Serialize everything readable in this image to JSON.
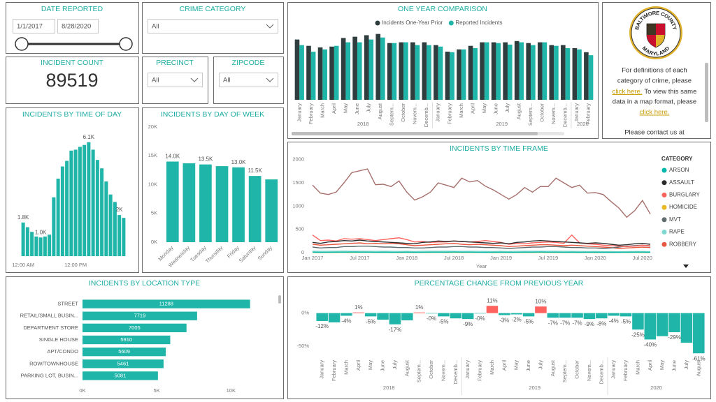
{
  "slicers": {
    "date": {
      "title": "DATE REPORTED",
      "start": "1/1/2017",
      "end": "8/28/2020"
    },
    "crime_category": {
      "title": "CRIME CATEGORY",
      "selected": "All"
    },
    "precinct": {
      "title": "PRECINCT",
      "selected": "All"
    },
    "zipcode": {
      "title": "ZIPCODE",
      "selected": "All"
    }
  },
  "kpi": {
    "title": "INCIDENT COUNT",
    "value": 89519
  },
  "logo": {
    "top": "BALTIMORE COUNTY",
    "bottom": "MARYLAND"
  },
  "info": {
    "line1": "For definitions of each",
    "line2": "category of crime, please",
    "link1": "click here.",
    "line3": "To view this same",
    "line4": "data in a map format, please",
    "link2": "click here.",
    "line5": "Please contact us at"
  },
  "chart_data": [
    {
      "type": "grouped_bar",
      "title": "ONE YEAR COMPARISON",
      "groups": [
        {
          "label": "2018",
          "categories": [
            "January",
            "February",
            "March",
            "April",
            "May",
            "June",
            "July",
            "August",
            "Septem...",
            "October",
            "Novem...",
            "Decemb..."
          ]
        },
        {
          "label": "2019",
          "categories": [
            "January",
            "February",
            "March",
            "April",
            "May",
            "June",
            "July",
            "August",
            "Septem...",
            "October",
            "Novem...",
            "Decemb..."
          ]
        },
        {
          "label": "2020",
          "categories": [
            "January",
            "February"
          ]
        }
      ],
      "series": [
        {
          "name": "Incidents One-Year Prior",
          "color": "#2f3d3e",
          "values": [
            2380,
            2130,
            2070,
            2100,
            2440,
            2490,
            2550,
            2600,
            2240,
            2270,
            2270,
            2270,
            2160,
            1900,
            1990,
            2130,
            2270,
            2270,
            2270,
            2320,
            2240,
            2270,
            2160,
            2160,
            2040,
            1880
          ]
        },
        {
          "name": "Reported Incidents",
          "color": "#1fb5a8",
          "values": [
            2160,
            1900,
            1990,
            2130,
            2270,
            2270,
            2380,
            2460,
            2240,
            2270,
            2160,
            2160,
            2100,
            1880,
            1990,
            2040,
            2270,
            2240,
            2180,
            2270,
            2160,
            2270,
            2130,
            2040,
            1990,
            1760
          ]
        }
      ],
      "ylim": [
        0,
        2700
      ]
    },
    {
      "type": "bar",
      "title": "INCIDENTS BY TIME OF DAY",
      "categories": [
        "12:00 AM",
        null,
        null,
        null,
        null,
        null,
        null,
        null,
        null,
        null,
        null,
        null,
        "12:00 PM",
        null,
        null,
        null,
        null,
        null,
        null,
        null,
        null,
        null,
        null,
        null
      ],
      "values": [
        1800,
        1550,
        1300,
        1050,
        1000,
        1050,
        1150,
        3150,
        4150,
        4800,
        5100,
        5650,
        5700,
        5850,
        5950,
        6100,
        5700,
        5150,
        4700,
        4000,
        3300,
        2900,
        2200,
        2050
      ],
      "value_labels": [
        "1.8K",
        null,
        null,
        null,
        "1.0K",
        null,
        null,
        null,
        null,
        null,
        null,
        null,
        null,
        null,
        null,
        "6.1K",
        null,
        null,
        null,
        null,
        null,
        null,
        "2K",
        null
      ],
      "color": "#1fb5a8",
      "ylim": [
        0,
        6800
      ]
    },
    {
      "type": "bar",
      "title": "INCIDENTS BY DAY OF WEEK",
      "categories": [
        "Monday",
        "Wednesday",
        "Tuesday",
        "Thursday",
        "Friday",
        "Saturday",
        "Sunday"
      ],
      "values": [
        14000,
        13700,
        13500,
        13200,
        13000,
        11500,
        10900
      ],
      "value_labels": [
        "14.0K",
        null,
        "13.5K",
        null,
        "13.0K",
        "11.5K",
        null
      ],
      "color": "#1fb5a8",
      "ylim": [
        0,
        20000
      ],
      "yticks": [
        {
          "value": 0,
          "label": "0K"
        },
        {
          "value": 5000,
          "label": "5K"
        },
        {
          "value": 10000,
          "label": "10K"
        },
        {
          "value": 15000,
          "label": "15K"
        },
        {
          "value": 20000,
          "label": "20K"
        }
      ]
    },
    {
      "type": "line",
      "title": "INCIDENTS BY TIME FRAME",
      "x_label": "Year",
      "legend_title": "CATEGORY",
      "x": [
        "2017-01",
        "2017-02",
        "2017-03",
        "2017-04",
        "2017-05",
        "2017-06",
        "2017-07",
        "2017-08",
        "2017-09",
        "2017-10",
        "2017-11",
        "2017-12",
        "2018-01",
        "2018-02",
        "2018-03",
        "2018-04",
        "2018-05",
        "2018-06",
        "2018-07",
        "2018-08",
        "2018-09",
        "2018-10",
        "2018-11",
        "2018-12",
        "2019-01",
        "2019-02",
        "2019-03",
        "2019-04",
        "2019-05",
        "2019-06",
        "2019-07",
        "2019-08",
        "2019-09",
        "2019-10",
        "2019-11",
        "2019-12",
        "2020-01",
        "2020-02",
        "2020-03",
        "2020-04",
        "2020-05",
        "2020-06",
        "2020-07",
        "2020-08"
      ],
      "xticks": [
        {
          "value": "2017-01",
          "label": "Jan 2017"
        },
        {
          "value": "2017-07",
          "label": "Jul 2017"
        },
        {
          "value": "2018-01",
          "label": "Jan 2018"
        },
        {
          "value": "2018-07",
          "label": "Jul 2018"
        },
        {
          "value": "2019-01",
          "label": "Jan 2019"
        },
        {
          "value": "2019-07",
          "label": "Jul 2019"
        },
        {
          "value": "2020-01",
          "label": "Jan 2020"
        },
        {
          "value": "2020-07",
          "label": "Jul 2020"
        }
      ],
      "ylim": [
        0,
        2100
      ],
      "yticks": [
        0,
        500,
        1000,
        1500,
        2000
      ],
      "series": [
        {
          "name": "ARSON",
          "color": "#01b8aa",
          "values": [
            10,
            8,
            9,
            11,
            10,
            12,
            11,
            10,
            9,
            10,
            8,
            9,
            10,
            8,
            9,
            10,
            11,
            10,
            12,
            11,
            10,
            9,
            8,
            9,
            10,
            8,
            9,
            10,
            11,
            12,
            10,
            11,
            9,
            10,
            8,
            9,
            9,
            8,
            7,
            8,
            9,
            10,
            11,
            9
          ]
        },
        {
          "name": "ASSAULT",
          "color": "#2b2b2b",
          "values": [
            220,
            200,
            230,
            240,
            260,
            250,
            270,
            250,
            240,
            230,
            220,
            210,
            200,
            190,
            220,
            230,
            250,
            240,
            250,
            240,
            230,
            220,
            210,
            200,
            210,
            190,
            220,
            230,
            250,
            260,
            250,
            240,
            230,
            220,
            210,
            200,
            210,
            200,
            180,
            160,
            170,
            190,
            200,
            180
          ]
        },
        {
          "name": "BURGLARY",
          "color": "#fd625e",
          "values": [
            380,
            260,
            270,
            250,
            300,
            290,
            300,
            280,
            260,
            280,
            300,
            320,
            280,
            230,
            240,
            220,
            230,
            230,
            250,
            240,
            230,
            240,
            260,
            240,
            220,
            180,
            200,
            190,
            210,
            220,
            230,
            220,
            200,
            380,
            210,
            190,
            180,
            160,
            150,
            140,
            130,
            140,
            160,
            150
          ]
        },
        {
          "name": "HOMICIDE",
          "color": "#e8b923",
          "values": [
            5,
            3,
            4,
            5,
            6,
            5,
            7,
            6,
            4,
            5,
            4,
            3,
            4,
            3,
            5,
            4,
            6,
            5,
            6,
            5,
            4,
            5,
            4,
            3,
            4,
            3,
            4,
            5,
            5,
            6,
            5,
            4,
            5,
            4,
            3,
            4,
            3,
            4,
            3,
            4,
            5,
            6,
            5,
            4
          ]
        },
        {
          "name": "MVT",
          "color": "#5f6b6d",
          "values": [
            120,
            100,
            110,
            110,
            130,
            130,
            140,
            140,
            130,
            120,
            120,
            110,
            110,
            100,
            100,
            110,
            120,
            120,
            130,
            130,
            120,
            120,
            110,
            110,
            100,
            90,
            100,
            110,
            120,
            120,
            130,
            130,
            120,
            110,
            110,
            100,
            100,
            90,
            100,
            120,
            140,
            150,
            160,
            140
          ]
        },
        {
          "name": "RAPE",
          "color": "#7fd8d0",
          "values": [
            30,
            28,
            32,
            30,
            34,
            32,
            30,
            31,
            29,
            30,
            28,
            27,
            30,
            26,
            30,
            32,
            31,
            33,
            30,
            29,
            30,
            28,
            27,
            26,
            29,
            25,
            28,
            30,
            31,
            30,
            32,
            30,
            29,
            28,
            27,
            26,
            27,
            24,
            22,
            20,
            22,
            25,
            26,
            24
          ]
        },
        {
          "name": "ROBBERY",
          "color": "#e8563f",
          "values": [
            180,
            160,
            170,
            180,
            190,
            200,
            210,
            190,
            200,
            190,
            200,
            190,
            170,
            150,
            160,
            170,
            180,
            190,
            200,
            180,
            170,
            180,
            170,
            160,
            150,
            130,
            140,
            150,
            160,
            170,
            170,
            160,
            150,
            160,
            150,
            140,
            130,
            120,
            110,
            90,
            100,
            110,
            120,
            110
          ]
        },
        {
          "color": "#a66f6b",
          "values": [
            1450,
            1280,
            1250,
            1300,
            1500,
            1720,
            1760,
            1800,
            1460,
            1470,
            1420,
            1540,
            1300,
            1130,
            1200,
            1300,
            1500,
            1450,
            1400,
            1600,
            1520,
            1550,
            1430,
            1350,
            1250,
            1150,
            1250,
            1400,
            1300,
            1420,
            1420,
            1600,
            1500,
            1400,
            1450,
            1280,
            1290,
            1250,
            1100,
            960,
            760,
            900,
            1120,
            830
          ]
        }
      ]
    },
    {
      "type": "horizontal_bar",
      "title": "INCIDENTS BY LOCATION TYPE",
      "categories": [
        "STREET",
        "RETAIL/SMALL BUSIN...",
        "DEPARTMENT STORE",
        "SINGLE HOUSE",
        "APT/CONDO",
        "ROW/TOWNHOUSE",
        "PARKING LOT, BUSIN..."
      ],
      "values": [
        11288,
        7719,
        7005,
        5910,
        5609,
        5461,
        5081
      ],
      "color": "#1fb5a8",
      "xlim": [
        0,
        13000
      ],
      "xticks": [
        {
          "value": 0,
          "label": "0K"
        },
        {
          "value": 5000,
          "label": "5K"
        },
        {
          "value": 10000,
          "label": "10K"
        }
      ]
    },
    {
      "type": "bar",
      "title": "PERCENTAGE CHANGE FROM PREVIOUS YEAR",
      "groups": [
        {
          "label": "2018",
          "categories": [
            "January",
            "February",
            "March",
            "April",
            "May",
            "June",
            "July",
            "August",
            "Septem...",
            "October",
            "Novem...",
            "Decemb..."
          ]
        },
        {
          "label": "2019",
          "categories": [
            "January",
            "February",
            "March",
            "April",
            "May",
            "June",
            "July",
            "August",
            "Septem...",
            "October",
            "Novem...",
            "Decemb..."
          ]
        },
        {
          "label": "2020",
          "categories": [
            "January",
            "February",
            "March",
            "April",
            "May",
            "June",
            "July",
            "August"
          ]
        }
      ],
      "values": [
        -12,
        -14,
        -4,
        1,
        -5,
        -10,
        -17,
        -11,
        1,
        -0.4,
        -5,
        -8,
        -9,
        -0.4,
        11,
        -3,
        -2,
        -5,
        10,
        -7,
        -7,
        -7,
        -9,
        -8,
        -4,
        -5,
        -25,
        -40,
        -35,
        -29,
        -45,
        -61
      ],
      "value_labels": [
        "-12%",
        null,
        "-4%",
        "1%",
        "-5%",
        null,
        "-17%",
        null,
        "1%",
        "-0%",
        "-5%",
        null,
        "-9%",
        "-0%",
        "11%",
        "-3%",
        "-2%",
        "-5%",
        "10%",
        "-7%",
        "-7%",
        "-7%",
        "-9%",
        "-8%",
        "-4%",
        "-5%",
        "-25%",
        "-40%",
        null,
        "-29%",
        null,
        "-61%"
      ],
      "color": "#1fb5a8",
      "positive_color": "#fd625e",
      "ylim": [
        -65,
        25
      ],
      "yticks": [
        {
          "value": 0,
          "label": "0%"
        },
        {
          "value": -50,
          "label": "-50%"
        }
      ]
    }
  ]
}
